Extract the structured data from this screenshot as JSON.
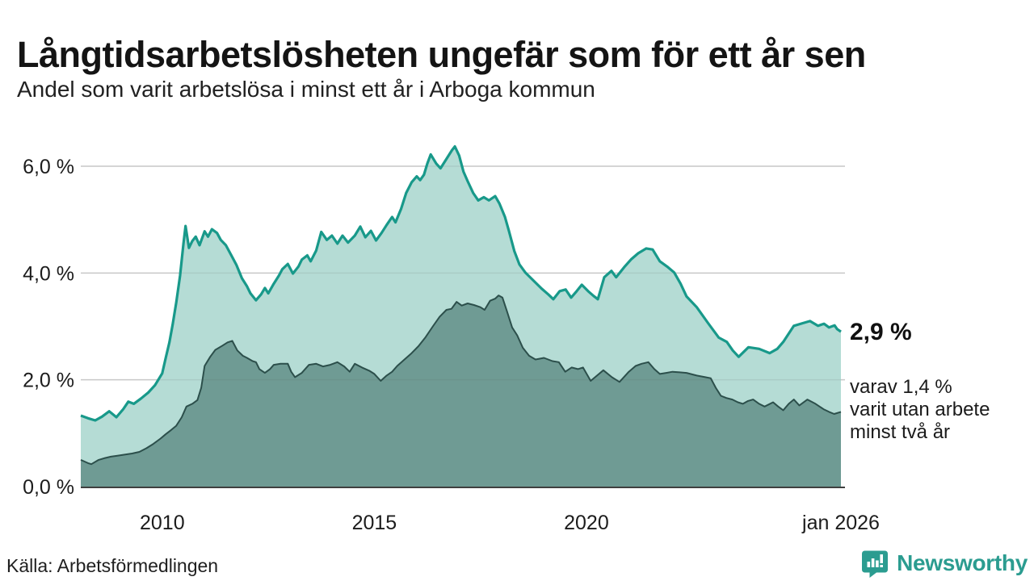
{
  "header": {
    "title": "Långtidsarbetslösheten ungefär som för ett år sen",
    "subtitle": "Andel som varit arbetslösa i minst ett år i Arboga kommun"
  },
  "annotation": {
    "value_label": "2,9 %",
    "detail_lines": [
      "varav 1,4 %",
      "varit utan arbete",
      "minst två år"
    ]
  },
  "footer": {
    "source": "Källa: Arbetsförmedlingen",
    "brand": "Newsworthy"
  },
  "colors": {
    "accent_teal": "#18998a",
    "light_fill": "#b5dcd5",
    "dark_fill": "#6f9b94",
    "dark_line": "#2c4f4b",
    "grid": "#d8d8d8",
    "grid_overlay": "rgba(90,90,90,0.12)",
    "axis": "#3f3f3f",
    "tick_text": "#1c1c1c",
    "brand_teal": "#2b9c90"
  },
  "chart_data": {
    "type": "area",
    "title": "Långtidsarbetslösheten ungefär som för ett år sen",
    "subtitle": "Andel som varit arbetslösa i minst ett år i Arboga kommun",
    "unit": "%",
    "x_range": [
      2008.08,
      2026.0
    ],
    "y_range": [
      0,
      6.4
    ],
    "grid": true,
    "x_ticks": [
      {
        "value": 2010,
        "label": "2010"
      },
      {
        "value": 2015,
        "label": "2015"
      },
      {
        "value": 2020,
        "label": "2020"
      },
      {
        "value": 2026,
        "label": "jan 2026"
      }
    ],
    "y_ticks": [
      {
        "value": 0,
        "label": "0,0 %"
      },
      {
        "value": 2,
        "label": "2,0 %"
      },
      {
        "value": 4,
        "label": "4,0 %"
      },
      {
        "value": 6,
        "label": "6,0 %"
      }
    ],
    "series": [
      {
        "name": "arbetslösa minst ett år",
        "end_label": "2,9 %",
        "points": [
          [
            2008.08,
            1.33
          ],
          [
            2008.25,
            1.28
          ],
          [
            2008.42,
            1.24
          ],
          [
            2008.58,
            1.31
          ],
          [
            2008.75,
            1.41
          ],
          [
            2008.92,
            1.3
          ],
          [
            2009.08,
            1.45
          ],
          [
            2009.2,
            1.59
          ],
          [
            2009.33,
            1.55
          ],
          [
            2009.5,
            1.65
          ],
          [
            2009.67,
            1.76
          ],
          [
            2009.83,
            1.9
          ],
          [
            2010.0,
            2.12
          ],
          [
            2010.08,
            2.4
          ],
          [
            2010.17,
            2.7
          ],
          [
            2010.25,
            3.05
          ],
          [
            2010.33,
            3.45
          ],
          [
            2010.42,
            3.95
          ],
          [
            2010.5,
            4.55
          ],
          [
            2010.55,
            4.88
          ],
          [
            2010.63,
            4.47
          ],
          [
            2010.71,
            4.6
          ],
          [
            2010.79,
            4.68
          ],
          [
            2010.88,
            4.52
          ],
          [
            2011.0,
            4.78
          ],
          [
            2011.08,
            4.68
          ],
          [
            2011.17,
            4.82
          ],
          [
            2011.29,
            4.75
          ],
          [
            2011.38,
            4.62
          ],
          [
            2011.5,
            4.52
          ],
          [
            2011.63,
            4.33
          ],
          [
            2011.75,
            4.15
          ],
          [
            2011.88,
            3.9
          ],
          [
            2012.0,
            3.75
          ],
          [
            2012.08,
            3.62
          ],
          [
            2012.21,
            3.49
          ],
          [
            2012.33,
            3.6
          ],
          [
            2012.42,
            3.72
          ],
          [
            2012.5,
            3.62
          ],
          [
            2012.63,
            3.8
          ],
          [
            2012.75,
            3.95
          ],
          [
            2012.83,
            4.07
          ],
          [
            2012.96,
            4.17
          ],
          [
            2013.08,
            3.99
          ],
          [
            2013.21,
            4.12
          ],
          [
            2013.29,
            4.25
          ],
          [
            2013.42,
            4.33
          ],
          [
            2013.5,
            4.22
          ],
          [
            2013.63,
            4.42
          ],
          [
            2013.75,
            4.77
          ],
          [
            2013.88,
            4.62
          ],
          [
            2014.0,
            4.7
          ],
          [
            2014.13,
            4.55
          ],
          [
            2014.25,
            4.7
          ],
          [
            2014.38,
            4.57
          ],
          [
            2014.54,
            4.7
          ],
          [
            2014.67,
            4.87
          ],
          [
            2014.79,
            4.67
          ],
          [
            2014.92,
            4.79
          ],
          [
            2015.04,
            4.61
          ],
          [
            2015.17,
            4.75
          ],
          [
            2015.29,
            4.9
          ],
          [
            2015.42,
            5.05
          ],
          [
            2015.5,
            4.95
          ],
          [
            2015.63,
            5.2
          ],
          [
            2015.75,
            5.5
          ],
          [
            2015.88,
            5.7
          ],
          [
            2016.0,
            5.81
          ],
          [
            2016.08,
            5.74
          ],
          [
            2016.17,
            5.84
          ],
          [
            2016.25,
            6.05
          ],
          [
            2016.33,
            6.22
          ],
          [
            2016.46,
            6.05
          ],
          [
            2016.56,
            5.96
          ],
          [
            2016.71,
            6.15
          ],
          [
            2016.83,
            6.3
          ],
          [
            2016.9,
            6.37
          ],
          [
            2017.0,
            6.2
          ],
          [
            2017.1,
            5.9
          ],
          [
            2017.2,
            5.72
          ],
          [
            2017.33,
            5.5
          ],
          [
            2017.45,
            5.36
          ],
          [
            2017.58,
            5.42
          ],
          [
            2017.7,
            5.36
          ],
          [
            2017.85,
            5.44
          ],
          [
            2017.95,
            5.3
          ],
          [
            2018.08,
            5.05
          ],
          [
            2018.17,
            4.8
          ],
          [
            2018.3,
            4.41
          ],
          [
            2018.42,
            4.16
          ],
          [
            2018.56,
            4.01
          ],
          [
            2018.75,
            3.86
          ],
          [
            2018.94,
            3.71
          ],
          [
            2019.1,
            3.6
          ],
          [
            2019.22,
            3.51
          ],
          [
            2019.37,
            3.66
          ],
          [
            2019.51,
            3.69
          ],
          [
            2019.64,
            3.54
          ],
          [
            2019.77,
            3.66
          ],
          [
            2019.89,
            3.78
          ],
          [
            2020.04,
            3.66
          ],
          [
            2020.17,
            3.57
          ],
          [
            2020.27,
            3.51
          ],
          [
            2020.42,
            3.92
          ],
          [
            2020.59,
            4.04
          ],
          [
            2020.7,
            3.92
          ],
          [
            2020.89,
            4.11
          ],
          [
            2021.06,
            4.26
          ],
          [
            2021.22,
            4.37
          ],
          [
            2021.41,
            4.46
          ],
          [
            2021.56,
            4.44
          ],
          [
            2021.73,
            4.22
          ],
          [
            2021.92,
            4.11
          ],
          [
            2022.07,
            4.01
          ],
          [
            2022.22,
            3.8
          ],
          [
            2022.36,
            3.56
          ],
          [
            2022.6,
            3.36
          ],
          [
            2022.87,
            3.06
          ],
          [
            2023.12,
            2.79
          ],
          [
            2023.31,
            2.71
          ],
          [
            2023.45,
            2.55
          ],
          [
            2023.59,
            2.43
          ],
          [
            2023.82,
            2.61
          ],
          [
            2024.07,
            2.58
          ],
          [
            2024.32,
            2.5
          ],
          [
            2024.5,
            2.58
          ],
          [
            2024.64,
            2.71
          ],
          [
            2024.89,
            3.01
          ],
          [
            2025.1,
            3.06
          ],
          [
            2025.27,
            3.1
          ],
          [
            2025.46,
            3.01
          ],
          [
            2025.6,
            3.05
          ],
          [
            2025.72,
            2.98
          ],
          [
            2025.85,
            3.02
          ],
          [
            2025.91,
            2.95
          ],
          [
            2026.0,
            2.9
          ]
        ]
      },
      {
        "name": "varav utan arbete minst två år",
        "end_label": "1,4 %",
        "points": [
          [
            2008.08,
            0.5
          ],
          [
            2008.25,
            0.44
          ],
          [
            2008.33,
            0.42
          ],
          [
            2008.5,
            0.5
          ],
          [
            2008.63,
            0.53
          ],
          [
            2008.79,
            0.56
          ],
          [
            2008.96,
            0.58
          ],
          [
            2009.13,
            0.6
          ],
          [
            2009.29,
            0.62
          ],
          [
            2009.46,
            0.65
          ],
          [
            2009.63,
            0.72
          ],
          [
            2009.79,
            0.8
          ],
          [
            2009.96,
            0.9
          ],
          [
            2010.08,
            0.98
          ],
          [
            2010.21,
            1.06
          ],
          [
            2010.33,
            1.14
          ],
          [
            2010.46,
            1.3
          ],
          [
            2010.57,
            1.5
          ],
          [
            2010.71,
            1.55
          ],
          [
            2010.83,
            1.62
          ],
          [
            2010.92,
            1.85
          ],
          [
            2011.0,
            2.26
          ],
          [
            2011.13,
            2.43
          ],
          [
            2011.25,
            2.56
          ],
          [
            2011.42,
            2.64
          ],
          [
            2011.54,
            2.7
          ],
          [
            2011.65,
            2.73
          ],
          [
            2011.77,
            2.55
          ],
          [
            2011.9,
            2.45
          ],
          [
            2012.0,
            2.41
          ],
          [
            2012.13,
            2.35
          ],
          [
            2012.21,
            2.33
          ],
          [
            2012.29,
            2.2
          ],
          [
            2012.42,
            2.13
          ],
          [
            2012.54,
            2.2
          ],
          [
            2012.63,
            2.28
          ],
          [
            2012.79,
            2.3
          ],
          [
            2012.96,
            2.3
          ],
          [
            2013.04,
            2.15
          ],
          [
            2013.13,
            2.05
          ],
          [
            2013.29,
            2.13
          ],
          [
            2013.46,
            2.28
          ],
          [
            2013.63,
            2.3
          ],
          [
            2013.79,
            2.25
          ],
          [
            2013.96,
            2.28
          ],
          [
            2014.13,
            2.33
          ],
          [
            2014.29,
            2.25
          ],
          [
            2014.42,
            2.15
          ],
          [
            2014.54,
            2.3
          ],
          [
            2014.71,
            2.23
          ],
          [
            2014.88,
            2.17
          ],
          [
            2015.0,
            2.11
          ],
          [
            2015.15,
            1.98
          ],
          [
            2015.29,
            2.08
          ],
          [
            2015.42,
            2.15
          ],
          [
            2015.54,
            2.26
          ],
          [
            2015.71,
            2.38
          ],
          [
            2015.88,
            2.5
          ],
          [
            2016.04,
            2.63
          ],
          [
            2016.21,
            2.8
          ],
          [
            2016.38,
            3.0
          ],
          [
            2016.54,
            3.18
          ],
          [
            2016.7,
            3.31
          ],
          [
            2016.82,
            3.33
          ],
          [
            2016.94,
            3.46
          ],
          [
            2017.06,
            3.39
          ],
          [
            2017.2,
            3.43
          ],
          [
            2017.35,
            3.4
          ],
          [
            2017.5,
            3.36
          ],
          [
            2017.6,
            3.31
          ],
          [
            2017.73,
            3.48
          ],
          [
            2017.85,
            3.52
          ],
          [
            2017.93,
            3.58
          ],
          [
            2018.02,
            3.54
          ],
          [
            2018.12,
            3.3
          ],
          [
            2018.25,
            2.98
          ],
          [
            2018.37,
            2.83
          ],
          [
            2018.5,
            2.6
          ],
          [
            2018.65,
            2.45
          ],
          [
            2018.8,
            2.38
          ],
          [
            2019.0,
            2.41
          ],
          [
            2019.2,
            2.35
          ],
          [
            2019.35,
            2.33
          ],
          [
            2019.5,
            2.15
          ],
          [
            2019.65,
            2.23
          ],
          [
            2019.8,
            2.2
          ],
          [
            2019.92,
            2.23
          ],
          [
            2020.1,
            1.98
          ],
          [
            2020.25,
            2.08
          ],
          [
            2020.4,
            2.18
          ],
          [
            2020.6,
            2.05
          ],
          [
            2020.78,
            1.96
          ],
          [
            2021.0,
            2.15
          ],
          [
            2021.16,
            2.26
          ],
          [
            2021.3,
            2.3
          ],
          [
            2021.46,
            2.33
          ],
          [
            2021.6,
            2.2
          ],
          [
            2021.73,
            2.11
          ],
          [
            2021.88,
            2.13
          ],
          [
            2022.03,
            2.15
          ],
          [
            2022.2,
            2.14
          ],
          [
            2022.36,
            2.13
          ],
          [
            2022.6,
            2.08
          ],
          [
            2022.8,
            2.05
          ],
          [
            2022.93,
            2.03
          ],
          [
            2023.05,
            1.85
          ],
          [
            2023.17,
            1.7
          ],
          [
            2023.3,
            1.66
          ],
          [
            2023.44,
            1.63
          ],
          [
            2023.57,
            1.58
          ],
          [
            2023.69,
            1.55
          ],
          [
            2023.8,
            1.6
          ],
          [
            2023.93,
            1.63
          ],
          [
            2024.07,
            1.55
          ],
          [
            2024.2,
            1.5
          ],
          [
            2024.4,
            1.58
          ],
          [
            2024.52,
            1.5
          ],
          [
            2024.64,
            1.43
          ],
          [
            2024.77,
            1.55
          ],
          [
            2024.89,
            1.63
          ],
          [
            2025.02,
            1.52
          ],
          [
            2025.21,
            1.63
          ],
          [
            2025.4,
            1.55
          ],
          [
            2025.59,
            1.45
          ],
          [
            2025.72,
            1.4
          ],
          [
            2025.84,
            1.36
          ],
          [
            2026.0,
            1.4
          ]
        ]
      }
    ]
  }
}
